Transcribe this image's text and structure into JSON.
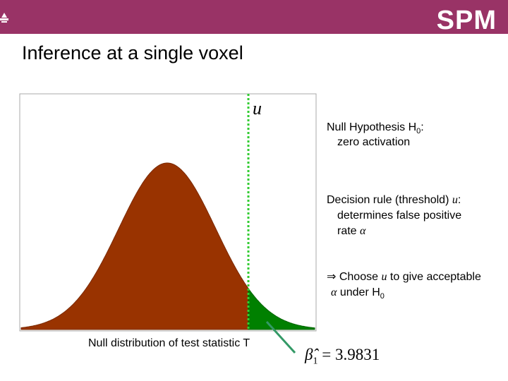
{
  "header": {
    "logo": "SPM"
  },
  "title": "Inference at a single voxel",
  "figure": {
    "threshold_label": "u",
    "caption": "Null distribution of test statistic T"
  },
  "notes": [
    {
      "heading": [
        "Null Hypothesis H",
        "0",
        ":"
      ],
      "body": [
        "zero activation"
      ]
    },
    {
      "heading": [
        "Decision rule (threshold) ",
        "u",
        ":"
      ],
      "body": [
        "determines false positive",
        "rate ",
        "α"
      ]
    },
    {
      "heading": [
        "⇒ Choose ",
        "u",
        " to give acceptable"
      ],
      "body": [
        "α",
        " under H",
        "0"
      ]
    }
  ],
  "estimate": {
    "symbol": "β̂",
    "subscript": "1",
    "equals": "=",
    "value": 3.9831
  }
}
